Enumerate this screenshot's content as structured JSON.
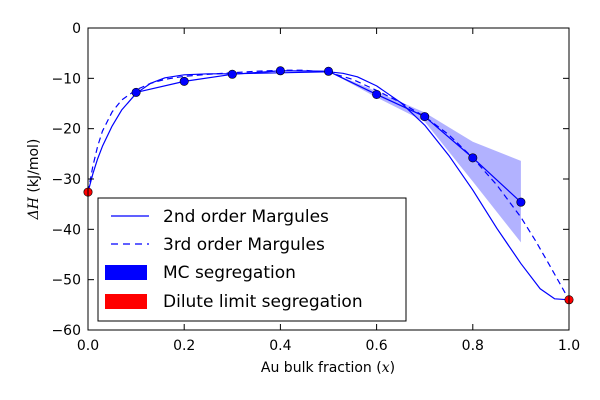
{
  "chart_data": {
    "type": "line",
    "xlabel": "Au bulk fraction ($x$)",
    "xlabel_text": "Au bulk fraction (",
    "xlabel_var": "x",
    "xlabel_close": ")",
    "ylabel": "ΔH (kJ/mol)",
    "ylabel_math": "ΔH",
    "ylabel_unit": " (kJ/mol)",
    "xlim": [
      0.0,
      1.0
    ],
    "ylim": [
      -60,
      0
    ],
    "xticks": [
      0.0,
      0.2,
      0.4,
      0.6,
      0.8,
      1.0
    ],
    "xtick_labels": [
      "0.0",
      "0.2",
      "0.4",
      "0.6",
      "0.8",
      "1.0"
    ],
    "yticks": [
      0,
      -10,
      -20,
      -30,
      -40,
      -50,
      -60
    ],
    "ytick_labels": [
      "0",
      "−10",
      "−20",
      "−30",
      "−40",
      "−50",
      "−60"
    ],
    "grid": false,
    "legend_position": "lower-left",
    "legend": [
      {
        "label": "2nd order Margules",
        "style": "solid-line",
        "color": "#0000ff"
      },
      {
        "label": "3rd order Margules",
        "style": "dashed-line",
        "color": "#0000ff"
      },
      {
        "label": "MC segregation",
        "style": "patch",
        "color": "#0000ff"
      },
      {
        "label": "Dilute limit segregation",
        "style": "patch",
        "color": "#ff0000"
      }
    ],
    "series": [
      {
        "name": "2nd order Margules",
        "style": "solid",
        "color": "#0000ff",
        "x": [
          0.0,
          0.01,
          0.02,
          0.03,
          0.05,
          0.07,
          0.1,
          0.13,
          0.16,
          0.2,
          0.25,
          0.3,
          0.35,
          0.4,
          0.45,
          0.5,
          0.53,
          0.56,
          0.6,
          0.65,
          0.7,
          0.75,
          0.8,
          0.85,
          0.9,
          0.94,
          0.97,
          1.0
        ],
        "y": [
          -32.6,
          -29.0,
          -26.0,
          -23.5,
          -19.5,
          -16.3,
          -13.0,
          -11.0,
          -9.9,
          -9.3,
          -9.1,
          -9.1,
          -9.0,
          -8.9,
          -8.8,
          -8.7,
          -9.0,
          -9.7,
          -11.5,
          -14.8,
          -19.3,
          -25.3,
          -32.2,
          -39.8,
          -46.8,
          -51.8,
          -53.8,
          -54.0
        ]
      },
      {
        "name": "3rd order Margules",
        "style": "dashed",
        "color": "#0000ff",
        "x": [
          0.0,
          0.01,
          0.02,
          0.03,
          0.05,
          0.07,
          0.1,
          0.13,
          0.16,
          0.2,
          0.25,
          0.3,
          0.35,
          0.4,
          0.45,
          0.5,
          0.55,
          0.6,
          0.65,
          0.7,
          0.75,
          0.8,
          0.85,
          0.9,
          0.93,
          0.96,
          1.0
        ],
        "y": [
          -32.6,
          -27.5,
          -23.5,
          -20.5,
          -16.7,
          -14.3,
          -12.3,
          -11.0,
          -10.2,
          -9.6,
          -9.2,
          -8.9,
          -8.6,
          -8.4,
          -8.4,
          -8.8,
          -10.2,
          -12.4,
          -14.8,
          -17.6,
          -21.2,
          -25.8,
          -31.2,
          -37.6,
          -42.2,
          -47.2,
          -54.0
        ]
      },
      {
        "name": "MC segregation",
        "style": "markers-line",
        "color": "#0000ff",
        "x": [
          0.1,
          0.2,
          0.3,
          0.4,
          0.5,
          0.6,
          0.7,
          0.8,
          0.9
        ],
        "y": [
          -12.8,
          -10.6,
          -9.2,
          -8.5,
          -8.6,
          -13.2,
          -17.6,
          -25.8,
          -34.6
        ],
        "band_upper": [
          -12.8,
          -10.6,
          -9.2,
          -8.5,
          -8.6,
          -12.6,
          -16.8,
          -22.6,
          -26.4
        ],
        "band_lower": [
          -12.8,
          -10.6,
          -9.2,
          -8.5,
          -8.6,
          -13.8,
          -18.6,
          -30.5,
          -42.6
        ]
      },
      {
        "name": "Dilute limit segregation",
        "style": "markers",
        "color": "#ff0000",
        "x": [
          0.0,
          1.0
        ],
        "y": [
          -32.6,
          -54.0
        ]
      }
    ]
  }
}
